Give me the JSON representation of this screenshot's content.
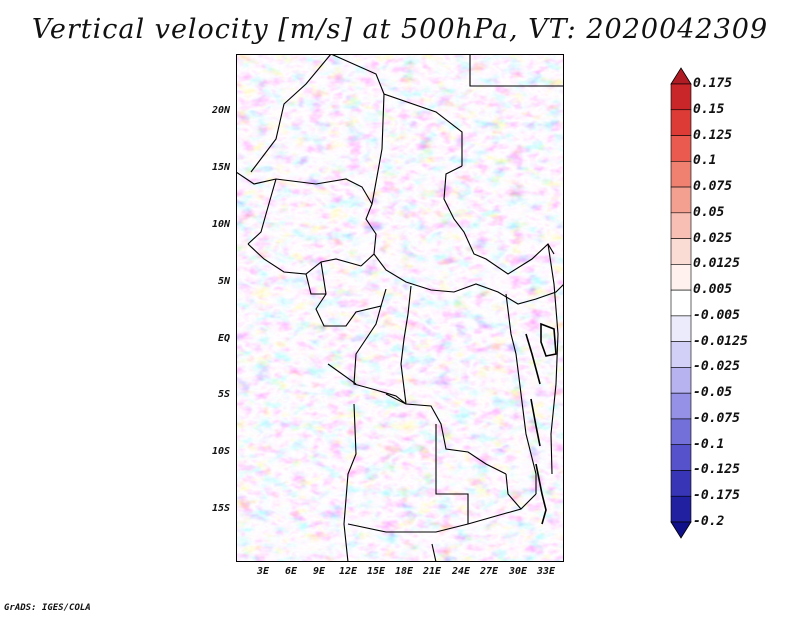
{
  "title": "Vertical velocity [m/s] at 500hPa, VT: 2020042309",
  "credit": "GrADS: IGES/COLA",
  "map": {
    "lat_labels": [
      "20N",
      "15N",
      "10N",
      "5N",
      "EQ",
      "5S",
      "10S",
      "15S"
    ],
    "lon_labels": [
      "3E",
      "6E",
      "9E",
      "12E",
      "15E",
      "18E",
      "21E",
      "24E",
      "27E",
      "30E",
      "33E"
    ]
  },
  "colorbar": {
    "labels": [
      "0.175",
      "0.15",
      "0.125",
      "0.1",
      "0.075",
      "0.05",
      "0.025",
      "0.0125",
      "0.005",
      "-0.005",
      "-0.0125",
      "-0.025",
      "-0.05",
      "-0.075",
      "-0.1",
      "-0.125",
      "-0.175",
      "-0.2"
    ],
    "colors": [
      "#b01c24",
      "#c9262a",
      "#dd3b35",
      "#eb5a4e",
      "#f0806f",
      "#f4a091",
      "#f8c0b4",
      "#fbdcd4",
      "#fff2ee",
      "#ffffff",
      "#ecebfb",
      "#d2d0f6",
      "#b6b3f0",
      "#9591e6",
      "#7470da",
      "#5552cb",
      "#3836b7",
      "#2020a0",
      "#10108a"
    ]
  },
  "colors": {
    "background": "#ffffff",
    "border": "#000000"
  }
}
